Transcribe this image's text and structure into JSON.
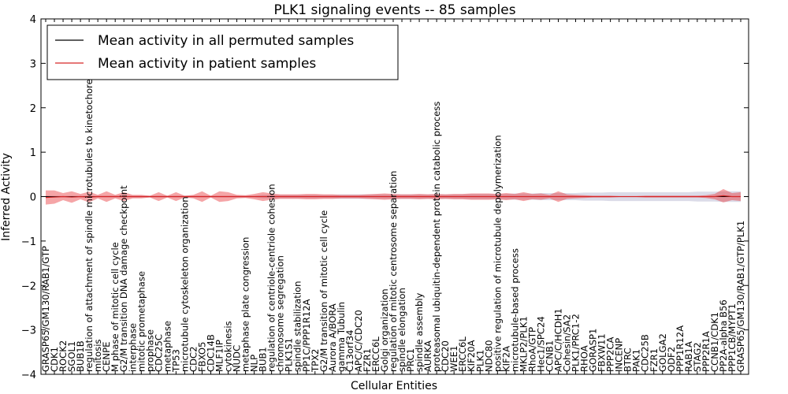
{
  "chart_data": {
    "type": "line",
    "title": "PLK1 signaling events -- 85 samples",
    "xlabel": "Cellular Entities",
    "ylabel": "Inferred Activity",
    "ylim": [
      -4,
      4
    ],
    "yticks": [
      "−4",
      "−3",
      "−2",
      "−1",
      "0",
      "1",
      "2",
      "3",
      "4"
    ],
    "legend": {
      "position": "top-left",
      "entries": [
        {
          "label": "Mean activity in all permuted samples",
          "color": "#000000"
        },
        {
          "label": "Mean activity in patient samples",
          "color": "#d62728"
        }
      ]
    },
    "categories": [
      "GRASP65/GM130/RAB1/GTP",
      "CDK1",
      "ROCK2",
      "SGOL1",
      "BUB1B",
      "regulation of attachment of spindle microtubules to kinetochore",
      "mitosis",
      "CENPE",
      "M phase of mitotic cell cycle",
      "G2/M transition DNA damage checkpoint",
      "interphase",
      "mitotic prometaphase",
      "prophase",
      "CDC25C",
      "metaphase",
      "TP53",
      "microtubule cytoskeleton organization",
      "CDC2",
      "FBXO5",
      "CDC14B",
      "MLF1IP",
      "cytokinesis",
      "NUDC",
      "metaphase plate congression",
      "NLP",
      "BUB1",
      "regulation of centriole-centriole cohesion",
      "chromosome segregation",
      "PLK1S1",
      "spindle stabilization",
      "PP1C/PPP1R12A",
      "TPX2",
      "G2/M transition of mitotic cell cycle",
      "Aurora A/BORA",
      "gamma Tubulin",
      "C13orf34",
      "APC/C/CDC20",
      "FZR1",
      "ERCC6L",
      "Golgi organization",
      "regulation of mitotic centrosome separation",
      "spindle elongation",
      "PRC1",
      "spindle assembly",
      "AURKA",
      "proteasomal ubiquitin-dependent protein catabolic process",
      "CDC20",
      "WEE1",
      "ERCC6L",
      "KIF20A",
      "PLK1",
      "NDC80",
      "positive regulation of microtubule depolymerization",
      "KIF2A",
      "microtubule-based process",
      "MKLP2/PLK1",
      "RhoA/GTP",
      "Hec1/SPC24",
      "CCNB1",
      "APC/C/HCDH1",
      "Cohesin/SA2",
      "PLK1/PRC1-2",
      "RHOA",
      "GORASP1",
      "FBXW11",
      "PPP2CA",
      "INCENP",
      "BTRC",
      "PAK1",
      "CDC25B",
      "FZR1",
      "GOLGA2",
      "ODF2",
      "PPP1R12A",
      "RAB1A",
      "STAG2",
      "PPP2R1A",
      "CCNB1/CDK1",
      "PP2A-alpha B56",
      "PPP1CB/MYPT1",
      "GRASP65/GM130/RAB1/GTP/PLK1"
    ],
    "series": [
      {
        "name": "Mean activity in all permuted samples",
        "values": [
          0,
          0,
          0,
          0,
          0,
          0,
          0,
          0,
          0,
          0,
          0,
          0,
          0,
          0,
          0,
          0,
          0,
          0,
          0,
          0,
          0,
          0,
          0,
          0,
          0,
          0,
          0,
          0,
          0,
          0,
          0,
          0,
          0,
          0,
          0,
          0,
          0,
          0,
          0,
          0,
          0,
          0,
          0,
          0,
          0,
          0,
          0,
          0,
          0,
          0,
          0,
          0,
          0,
          0,
          0,
          0,
          0,
          0,
          0,
          0,
          0,
          0,
          0,
          0,
          0,
          0,
          0,
          0,
          0,
          0,
          0,
          0,
          0,
          0,
          0,
          0,
          0,
          0,
          0,
          0,
          0
        ],
        "band": [
          0.02,
          0.02,
          0.02,
          0.02,
          0.02,
          0.02,
          0.02,
          0.02,
          0.02,
          0.02,
          0.02,
          0.02,
          0.02,
          0.02,
          0.02,
          0.02,
          0.02,
          0.02,
          0.02,
          0.02,
          0.02,
          0.02,
          0.02,
          0.02,
          0.02,
          0.04,
          0.04,
          0.04,
          0.04,
          0.04,
          0.04,
          0.04,
          0.04,
          0.04,
          0.05,
          0.05,
          0.05,
          0.05,
          0.05,
          0.05,
          0.05,
          0.05,
          0.05,
          0.05,
          0.05,
          0.05,
          0.05,
          0.05,
          0.05,
          0.06,
          0.06,
          0.06,
          0.06,
          0.06,
          0.07,
          0.07,
          0.07,
          0.08,
          0.08,
          0.08,
          0.08,
          0.08,
          0.09,
          0.09,
          0.09,
          0.1,
          0.1,
          0.1,
          0.1,
          0.1,
          0.1,
          0.1,
          0.1,
          0.1,
          0.1,
          0.11,
          0.11,
          0.11,
          0.12,
          0.12,
          0.12
        ]
      },
      {
        "name": "Mean activity in patient samples",
        "values": [
          -0.02,
          -0.01,
          0,
          -0.01,
          0,
          -0.01,
          0,
          0,
          0,
          0,
          0,
          0,
          0,
          0,
          0,
          0,
          0,
          0,
          0,
          0,
          0,
          0,
          0,
          0,
          0,
          0,
          0,
          0,
          0,
          0,
          0,
          0,
          0,
          0,
          0,
          0,
          0,
          0,
          0,
          0,
          0,
          0,
          0,
          0,
          0,
          0,
          0,
          0,
          0,
          0,
          0,
          0,
          0,
          0,
          0,
          0,
          0,
          0,
          0,
          0,
          0,
          0,
          0,
          0,
          0,
          0,
          0,
          0,
          0,
          0,
          0,
          0,
          0,
          0,
          0,
          0,
          0,
          0,
          0.02,
          0,
          0
        ],
        "band": [
          0.16,
          0.15,
          0.08,
          0.13,
          0.06,
          0.12,
          0.04,
          0.12,
          0.04,
          0.1,
          0.04,
          0.04,
          0.02,
          0.1,
          0.02,
          0.1,
          0.02,
          0.04,
          0.12,
          0.02,
          0.12,
          0.1,
          0.04,
          0.03,
          0.06,
          0.1,
          0.07,
          0.05,
          0.05,
          0.05,
          0.06,
          0.06,
          0.05,
          0.05,
          0.04,
          0.04,
          0.04,
          0.05,
          0.06,
          0.07,
          0.06,
          0.05,
          0.05,
          0.06,
          0.05,
          0.06,
          0.05,
          0.06,
          0.06,
          0.07,
          0.07,
          0.07,
          0.06,
          0.08,
          0.06,
          0.1,
          0.06,
          0.07,
          0.04,
          0.12,
          0.05,
          0.04,
          0.03,
          0.02,
          0.02,
          0.02,
          0.01,
          0.01,
          0.01,
          0.02,
          0.02,
          0.02,
          0.02,
          0.02,
          0.02,
          0.02,
          0.03,
          0.06,
          0.15,
          0.08,
          0.1
        ]
      }
    ]
  }
}
